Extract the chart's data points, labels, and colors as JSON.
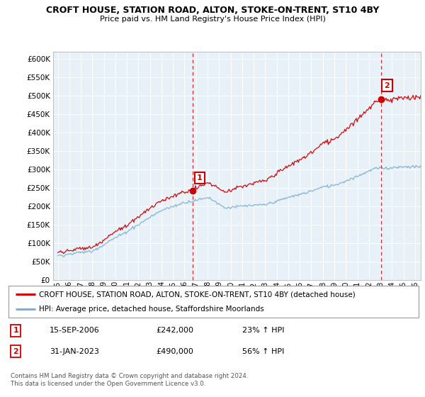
{
  "title": "CROFT HOUSE, STATION ROAD, ALTON, STOKE-ON-TRENT, ST10 4BY",
  "subtitle": "Price paid vs. HM Land Registry's House Price Index (HPI)",
  "legend_label_red": "CROFT HOUSE, STATION ROAD, ALTON, STOKE-ON-TRENT, ST10 4BY (detached house)",
  "legend_label_blue": "HPI: Average price, detached house, Staffordshire Moorlands",
  "sale1_date": "15-SEP-2006",
  "sale1_price": "£242,000",
  "sale1_hpi": "23% ↑ HPI",
  "sale2_date": "31-JAN-2023",
  "sale2_price": "£490,000",
  "sale2_hpi": "56% ↑ HPI",
  "footer": "Contains HM Land Registry data © Crown copyright and database right 2024.\nThis data is licensed under the Open Government Licence v3.0.",
  "red_color": "#cc0000",
  "blue_color": "#7bafd4",
  "grid_color": "#cccccc",
  "bg_color": "#e8f0f8",
  "ylim_min": 0,
  "ylim_max": 620000,
  "sale1_year_x": 2006.71,
  "sale1_value": 242000,
  "sale2_year_x": 2023.08,
  "sale2_value": 490000,
  "xmin": 1994.6,
  "xmax": 2026.5
}
